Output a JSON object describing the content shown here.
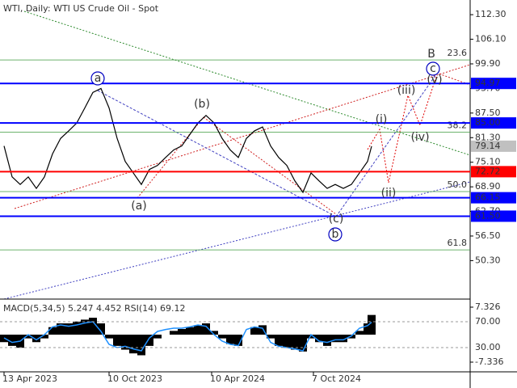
{
  "chart_data": [
    {
      "type": "line",
      "title": "WTI, Daily:  WTI US Crude Oil - Spot",
      "x": [
        0,
        10,
        20,
        30,
        40,
        50,
        60,
        70,
        80,
        90,
        100,
        110,
        120,
        130,
        140,
        150,
        160,
        170,
        180,
        190,
        200,
        210,
        220,
        230,
        240,
        250,
        260,
        270,
        280,
        290,
        300,
        310,
        320,
        330,
        340,
        350,
        360,
        370,
        380,
        390,
        400,
        410,
        420,
        430,
        440,
        450,
        455
      ],
      "series": [
        {
          "color": "#000000",
          "values": [
            79.2,
            71.4,
            69.5,
            71.4,
            68.5,
            71.4,
            77.2,
            81.1,
            83,
            85,
            88.8,
            92.7,
            93.7,
            88.8,
            81.1,
            75.3,
            72.4,
            69.5,
            73.3,
            74.3,
            76.3,
            78.2,
            79.2,
            82.1,
            85,
            86.9,
            85,
            81.1,
            78.2,
            76.3,
            81.1,
            83,
            84,
            79.2,
            76.3,
            74.3,
            70.4,
            67.5,
            72.4,
            70.4,
            68.5,
            69.5,
            68.5,
            69.5,
            72.4,
            75.3,
            79.14
          ]
        }
      ],
      "xlim": [
        -5,
        577
      ],
      "xticks": [
        {
          "value": 0,
          "label": "13 Apr 2023"
        },
        {
          "value": 130,
          "label": "10 Oct 2023"
        },
        {
          "value": 257,
          "label": "10 Apr 2024"
        },
        {
          "value": 383,
          "label": "7 Oct 2024"
        }
      ],
      "ylim": [
        40.6,
        116
      ],
      "yticks": [
        {
          "value": 112.3,
          "label": "112.30"
        },
        {
          "value": 106.1,
          "label": "106.10"
        },
        {
          "value": 99.9,
          "label": "99.90"
        },
        {
          "value": 93.7,
          "label": "93.70"
        },
        {
          "value": 87.5,
          "label": "87.50"
        },
        {
          "value": 81.3,
          "label": "81.30"
        },
        {
          "value": 75.1,
          "label": "75.10"
        },
        {
          "value": 68.9,
          "label": "68.90"
        },
        {
          "value": 62.7,
          "label": "62.70"
        },
        {
          "value": 56.5,
          "label": "56.50"
        },
        {
          "value": 50.3,
          "label": "50.30"
        }
      ],
      "levels": [
        {
          "value": 94.97,
          "label": "94.97",
          "color": "#0000ff"
        },
        {
          "value": 85,
          "label": "85.00",
          "color": "#0000ff"
        },
        {
          "value": 72.72,
          "label": "72.72",
          "color": "#ff0000"
        },
        {
          "value": 66.15,
          "label": "66.15",
          "color": "#0000ff"
        },
        {
          "value": 61.5,
          "label": "61.50",
          "color": "#0000ff"
        }
      ],
      "current_price": {
        "value": 79.14,
        "label": "79.14",
        "color": "#c0c0c0"
      },
      "fibonacci": [
        {
          "value": 100.9,
          "label": "23.6"
        },
        {
          "value": 82.65,
          "label": "38.2"
        },
        {
          "value": 67.7,
          "label": "50.0"
        },
        {
          "value": 53.0,
          "label": "61.8"
        }
      ],
      "fib_color": "#3c9a3c",
      "annotations": [
        {
          "text": "B",
          "color": "#c00000"
        },
        {
          "text": "c",
          "color": "#0000c0"
        },
        {
          "text": "(v)",
          "color": "#e00000"
        },
        {
          "text": "(iii)",
          "color": "#e00000"
        },
        {
          "text": "(i)",
          "color": "#e00000"
        },
        {
          "text": "(iv)",
          "color": "#e00000"
        },
        {
          "text": "(ii)",
          "color": "#e00000"
        },
        {
          "text": "(b)",
          "color": "#e00000"
        },
        {
          "text": "(a)",
          "color": "#e00000"
        },
        {
          "text": "a",
          "color": "#0000c0"
        },
        {
          "text": "(c)",
          "color": "#e00000"
        },
        {
          "text": "b",
          "color": "#0000c0"
        }
      ]
    },
    {
      "type": "bar",
      "title": "MACD(5,34,5) 5.247 4.452 RSI(14) 69.12",
      "series": [
        {
          "color": "#000000",
          "values": [
            -2,
            -3,
            -3.5,
            -1,
            -2,
            -1,
            2,
            3,
            3,
            3.5,
            4,
            4.5,
            3,
            -1,
            -3,
            -4,
            -5,
            -5.5,
            -3,
            -1,
            0,
            1,
            1.5,
            2,
            2.5,
            3,
            1,
            -1,
            -2.5,
            -3,
            0,
            2,
            2.5,
            -1,
            -3,
            -3.5,
            -4,
            -4.5,
            -1,
            -2,
            -3,
            -2,
            -2,
            -1,
            1,
            3,
            5.247
          ]
        },
        {
          "color": "#1e90ff",
          "axis": "y2",
          "values": [
            45,
            38,
            40,
            50,
            42,
            50,
            62,
            65,
            63,
            65,
            68,
            70,
            55,
            35,
            30,
            32,
            28,
            25,
            45,
            55,
            58,
            60,
            60,
            62,
            65,
            63,
            50,
            40,
            35,
            33,
            58,
            62,
            60,
            38,
            32,
            30,
            28,
            25,
            50,
            40,
            38,
            42,
            42,
            48,
            60,
            64,
            69.12
          ]
        }
      ],
      "ylim": [
        -9.92,
        9.05
      ],
      "yticks": [
        7.326,
        -7.336
      ],
      "y2lim": [
        -7.5,
        102.5
      ],
      "y2ticks": [
        {
          "value": 70,
          "label": "70.00"
        },
        {
          "value": 30,
          "label": "30.00"
        }
      ]
    }
  ]
}
